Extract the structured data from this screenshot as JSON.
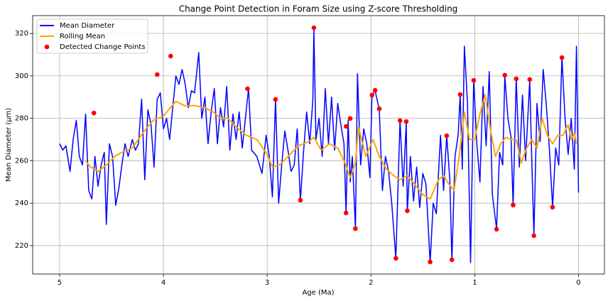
{
  "chart_data": {
    "type": "line",
    "title": "Change Point Detection in Foram Size using Z-score Thresholding",
    "xlabel": "Age (Ma)",
    "ylabel": "Mean Diameter (μm)",
    "xlim": [
      5.26,
      -0.25
    ],
    "ylim": [
      206.6,
      328.4
    ],
    "xticks": [
      5,
      4,
      3,
      2,
      1,
      0
    ],
    "yticks": [
      220,
      240,
      260,
      280,
      300,
      320
    ],
    "grid": true,
    "legend": "upper left",
    "series": [
      {
        "name": "Mean Diameter",
        "color": "#0000ff",
        "style": "line",
        "x": [
          5.0,
          4.97,
          4.94,
          4.9,
          4.87,
          4.84,
          4.81,
          4.78,
          4.75,
          4.72,
          4.69,
          4.66,
          4.63,
          4.6,
          4.57,
          4.55,
          4.52,
          4.49,
          4.46,
          4.43,
          4.4,
          4.37,
          4.34,
          4.3,
          4.27,
          4.24,
          4.21,
          4.18,
          4.15,
          4.12,
          4.09,
          4.06,
          4.03,
          4.0,
          3.97,
          3.94,
          3.91,
          3.88,
          3.85,
          3.82,
          3.79,
          3.76,
          3.73,
          3.7,
          3.66,
          3.63,
          3.6,
          3.57,
          3.54,
          3.51,
          3.48,
          3.45,
          3.42,
          3.39,
          3.36,
          3.33,
          3.3,
          3.27,
          3.24,
          3.21,
          3.18,
          3.15,
          3.1,
          3.05,
          3.01,
          2.98,
          2.95,
          2.92,
          2.89,
          2.86,
          2.83,
          2.8,
          2.77,
          2.74,
          2.71,
          2.68,
          2.65,
          2.62,
          2.59,
          2.56,
          2.55,
          2.53,
          2.5,
          2.47,
          2.44,
          2.41,
          2.38,
          2.35,
          2.32,
          2.29,
          2.26,
          2.24,
          2.22,
          2.2,
          2.18,
          2.15,
          2.13,
          2.1,
          2.07,
          2.04,
          2.01,
          1.99,
          1.96,
          1.92,
          1.89,
          1.86,
          1.83,
          1.8,
          1.76,
          1.72,
          1.69,
          1.66,
          1.65,
          1.62,
          1.59,
          1.56,
          1.53,
          1.5,
          1.47,
          1.43,
          1.4,
          1.37,
          1.33,
          1.3,
          1.27,
          1.24,
          1.22,
          1.19,
          1.16,
          1.14,
          1.12,
          1.1,
          1.07,
          1.04,
          1.01,
          0.98,
          0.95,
          0.92,
          0.89,
          0.86,
          0.83,
          0.79,
          0.76,
          0.73,
          0.71,
          0.68,
          0.65,
          0.63,
          0.6,
          0.57,
          0.54,
          0.51,
          0.47,
          0.45,
          0.43,
          0.4,
          0.37,
          0.34,
          0.31,
          0.28,
          0.25,
          0.22,
          0.19,
          0.16,
          0.13,
          0.1,
          0.07,
          0.04,
          0.02,
          0.0
        ],
        "values": [
          268,
          265,
          267,
          255,
          270,
          279,
          262,
          258,
          282,
          246,
          242,
          262,
          248,
          258,
          264,
          230,
          268,
          262,
          239,
          247,
          258,
          268,
          262,
          270,
          265,
          268,
          289,
          251,
          284,
          277,
          257,
          289,
          292,
          275,
          280,
          270,
          285,
          300,
          296,
          303,
          296,
          285,
          293,
          292,
          311,
          280,
          290,
          268,
          283,
          294,
          268,
          285,
          276,
          295,
          265,
          282,
          270,
          283,
          266,
          280,
          294,
          265,
          262,
          254,
          272,
          262,
          243,
          289,
          240,
          258,
          274,
          265,
          255,
          258,
          275,
          241,
          264,
          283,
          268,
          289,
          322,
          270,
          280,
          262,
          294,
          268,
          290,
          265,
          287,
          277,
          268,
          235,
          279,
          250,
          262,
          228,
          301,
          258,
          275,
          268,
          252,
          291,
          293,
          284,
          246,
          262,
          255,
          240,
          214,
          279,
          248,
          278,
          236,
          262,
          241,
          257,
          238,
          254,
          249,
          212,
          240,
          235,
          272,
          246,
          272,
          251,
          213,
          262,
          272,
          291,
          256,
          314,
          287,
          212,
          298,
          268,
          250,
          295,
          267,
          302,
          244,
          228,
          264,
          258,
          300,
          280,
          271,
          239,
          299,
          257,
          291,
          260,
          298,
          260,
          225,
          287,
          269,
          303,
          286,
          265,
          238,
          266,
          258,
          309,
          280,
          263,
          280,
          256,
          314,
          245
        ]
      },
      {
        "name": "Rolling Mean",
        "color": "#ffa500",
        "style": "line",
        "x": [
          4.75,
          4.7,
          4.63,
          4.55,
          4.47,
          4.4,
          4.3,
          4.2,
          4.1,
          4.0,
          3.95,
          3.88,
          3.8,
          3.7,
          3.6,
          3.52,
          3.45,
          3.38,
          3.3,
          3.2,
          3.1,
          3.0,
          2.95,
          2.88,
          2.8,
          2.7,
          2.6,
          2.55,
          2.48,
          2.4,
          2.32,
          2.25,
          2.2,
          2.15,
          2.12,
          2.05,
          1.98,
          1.92,
          1.85,
          1.78,
          1.72,
          1.65,
          1.58,
          1.5,
          1.43,
          1.35,
          1.3,
          1.25,
          1.2,
          1.15,
          1.1,
          1.05,
          1.0,
          0.95,
          0.9,
          0.85,
          0.8,
          0.75,
          0.7,
          0.65,
          0.6,
          0.55,
          0.5,
          0.45,
          0.4,
          0.35,
          0.3,
          0.25,
          0.2,
          0.15,
          0.1,
          0.07,
          0.04,
          0.02
        ],
        "values": [
          260,
          257,
          255,
          258,
          262,
          264,
          266,
          273,
          279,
          281,
          284,
          288,
          286,
          286,
          285,
          283,
          280,
          280,
          276,
          272,
          270,
          263,
          257,
          258,
          262,
          267,
          269,
          271,
          265,
          268,
          266,
          259,
          252,
          259,
          276,
          262,
          270,
          262,
          256,
          253,
          251,
          253,
          249,
          244,
          242,
          251,
          253,
          249,
          246,
          262,
          283,
          270,
          270,
          282,
          291,
          275,
          262,
          268,
          271,
          270,
          270,
          259,
          266,
          270,
          266,
          280,
          272,
          268,
          272,
          272,
          277,
          270,
          273,
          268
        ]
      },
      {
        "name": "Detected Change Points",
        "color": "#ff0000",
        "style": "points",
        "x": [
          4.67,
          4.06,
          3.93,
          3.19,
          2.92,
          2.68,
          2.55,
          2.24,
          2.24,
          2.2,
          2.15,
          1.99,
          1.96,
          1.92,
          1.76,
          1.72,
          1.66,
          1.65,
          1.43,
          1.27,
          1.22,
          1.14,
          1.01,
          0.79,
          0.71,
          0.63,
          0.6,
          0.47,
          0.43,
          0.25,
          0.16
        ],
        "values": [
          282.5,
          300.6,
          309.3,
          293.9,
          288.9,
          241.4,
          322.7,
          276.2,
          235.4,
          279.9,
          228.0,
          290.9,
          293.2,
          284.5,
          214.0,
          278.9,
          278.5,
          236.4,
          212.3,
          271.8,
          213.3,
          291.2,
          297.9,
          227.7,
          300.3,
          239.1,
          298.6,
          298.3,
          224.7,
          238.1,
          308.6
        ]
      }
    ]
  }
}
